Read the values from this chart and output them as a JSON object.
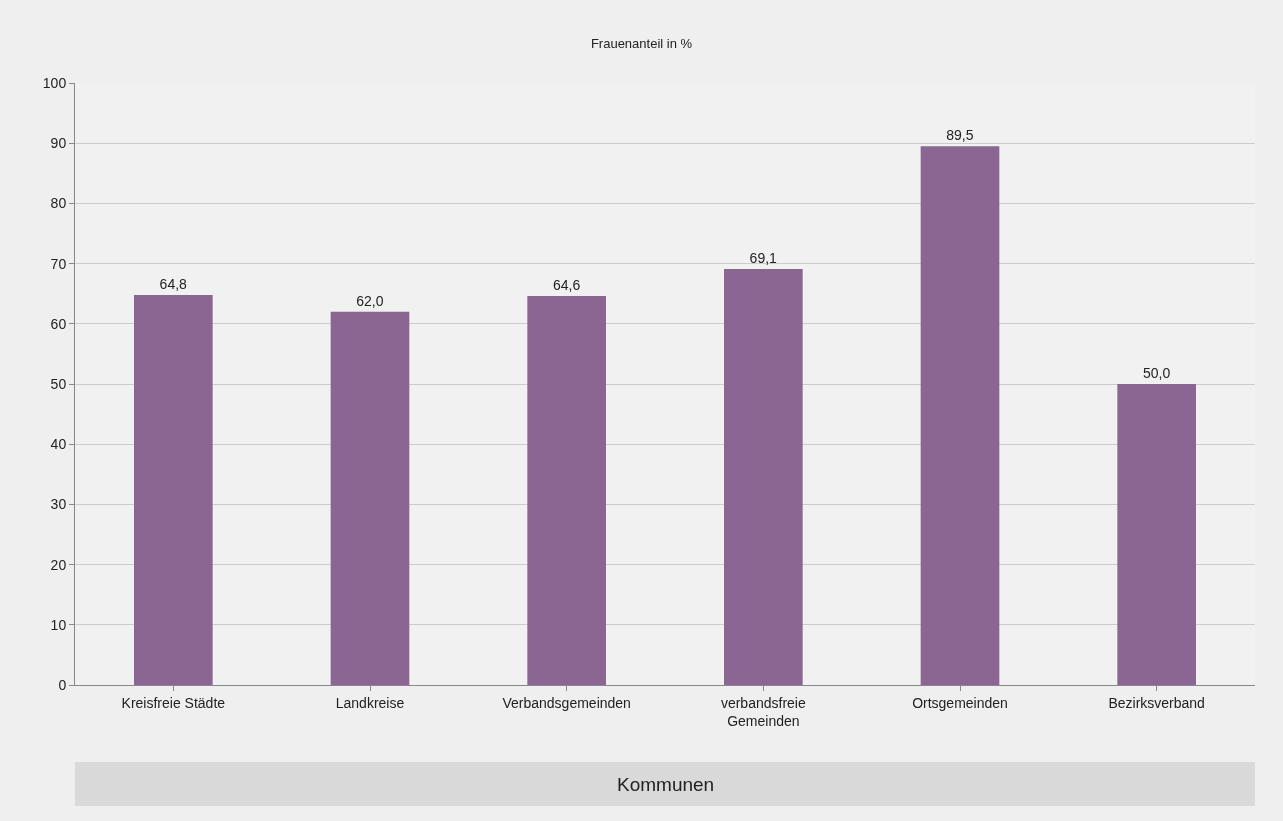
{
  "chart_data": {
    "type": "bar",
    "title": "Frauenanteil in %",
    "xlabel": "Kommunen",
    "categories": [
      "Kreisfreie Städte",
      "Landkreise",
      "Verbandsgemeinden",
      "verbandsfreie Gemeinden",
      "Ortsgemeinden",
      "Bezirksverband"
    ],
    "values": [
      64.8,
      62.0,
      64.6,
      69.1,
      89.5,
      50.0
    ],
    "color": "#8b6693",
    "ylim": [
      0,
      100
    ],
    "yticks": [
      0,
      10,
      20,
      30,
      40,
      50,
      60,
      70,
      80,
      90,
      100
    ],
    "grid": "y",
    "value_labels": [
      "64,8",
      "62,0",
      "64,6",
      "69,1",
      "89,5",
      "50,0"
    ]
  }
}
